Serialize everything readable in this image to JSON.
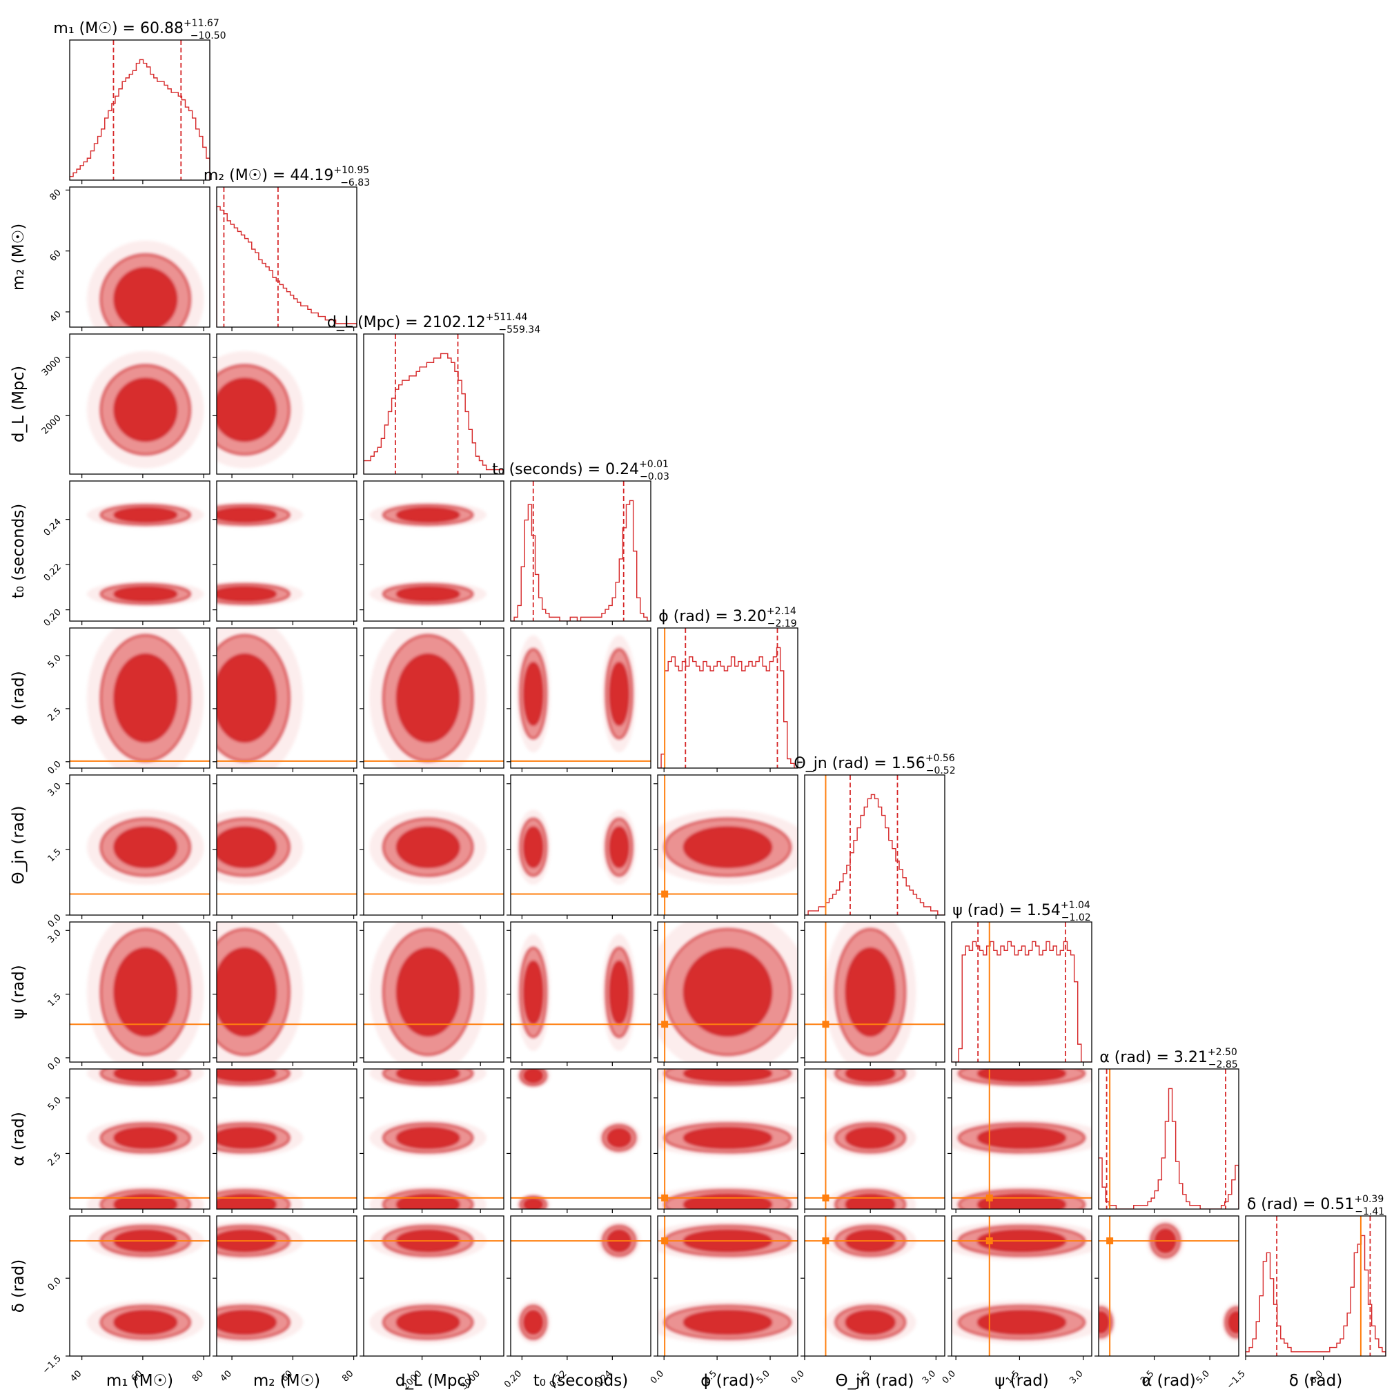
{
  "chart_data": {
    "type": "corner",
    "colors": {
      "posterior": "#d62728",
      "injection": "#ff7f0e",
      "frame": "#000000"
    },
    "parameters": [
      {
        "key": "m1",
        "label": "m₁ (M☉)",
        "title": "m₁ (M☉) = 60.88",
        "median": "60.88",
        "plus": "+11.67",
        "minus": "−10.50",
        "range": [
          36,
          82
        ],
        "ticks": [
          40,
          60,
          80
        ],
        "tick_labels": [
          "40",
          "60",
          "80"
        ],
        "injection": null
      },
      {
        "key": "m2",
        "label": "m₂ (M☉)",
        "title": "m₂ (M☉) = 44.19",
        "median": "44.19",
        "plus": "+10.95",
        "minus": "−6.83",
        "range": [
          35,
          81
        ],
        "ticks": [
          40,
          60,
          80
        ],
        "tick_labels": [
          "40",
          "60",
          "80"
        ],
        "injection": null
      },
      {
        "key": "dL",
        "label": "d_L (Mpc)",
        "title": "d_L (Mpc) = 2102.12",
        "median": "2102.12",
        "plus": "+511.44",
        "minus": "−559.34",
        "range": [
          1000,
          3400
        ],
        "ticks": [
          2000,
          3000
        ],
        "tick_labels": [
          "2000",
          "3000"
        ],
        "injection": null
      },
      {
        "key": "t0",
        "label": "t₀ (seconds)",
        "title": "t₀ (seconds) = 0.24",
        "median": "0.24",
        "plus": "+0.01",
        "minus": "−0.03",
        "range": [
          0.195,
          0.257
        ],
        "ticks": [
          0.2,
          0.22,
          0.24
        ],
        "tick_labels": [
          "0.20",
          "0.22",
          "0.24"
        ],
        "injection": null
      },
      {
        "key": "phi",
        "label": "ϕ (rad)",
        "title": "ϕ (rad) = 3.20",
        "median": "3.20",
        "plus": "+2.14",
        "minus": "−2.19",
        "range": [
          -0.3,
          6.3
        ],
        "ticks": [
          0.0,
          2.5,
          5.0
        ],
        "tick_labels": [
          "0.0",
          "2.5",
          "5.0"
        ],
        "injection": 0.03
      },
      {
        "key": "theta",
        "label": "Θ_jn (rad)",
        "title": "Θ_jn (rad) = 1.56",
        "median": "1.56",
        "plus": "+0.56",
        "minus": "−0.52",
        "range": [
          0.0,
          3.2
        ],
        "ticks": [
          0.0,
          1.5,
          3.0
        ],
        "tick_labels": [
          "0.0",
          "1.5",
          "3.0"
        ],
        "injection": 0.48
      },
      {
        "key": "psi",
        "label": "ψ (rad)",
        "title": "ψ (rad) = 1.54",
        "median": "1.54",
        "plus": "+1.04",
        "minus": "−1.02",
        "range": [
          -0.1,
          3.2
        ],
        "ticks": [
          0.0,
          1.5,
          3.0
        ],
        "tick_labels": [
          "0.0",
          "1.5",
          "3.0"
        ],
        "injection": 0.79
      },
      {
        "key": "alpha",
        "label": "α (rad)",
        "title": "α (rad) = 3.21",
        "median": "3.21",
        "plus": "+2.50",
        "minus": "−2.85",
        "range": [
          0.0,
          6.3
        ],
        "ticks": [
          2.5,
          5.0
        ],
        "tick_labels": [
          "2.5",
          "5.0"
        ],
        "injection": 0.5
      },
      {
        "key": "delta",
        "label": "δ (rad)",
        "title": "δ (rad) = 0.51",
        "median": "0.51",
        "plus": "+0.39",
        "minus": "−1.41",
        "range": [
          -1.5,
          1.2
        ],
        "ticks": [
          -1.5,
          0.0
        ],
        "tick_labels": [
          "−1.5",
          "0.0"
        ],
        "injection": 0.72
      }
    ],
    "histograms": [
      {
        "param": "m1",
        "quantiles": [
          50.38,
          72.55
        ],
        "counts": [
          1,
          2,
          3,
          4,
          5,
          6,
          8,
          10,
          12,
          14,
          17,
          19,
          21,
          23,
          25,
          27,
          28,
          29,
          30,
          32,
          33,
          32,
          31,
          29,
          28,
          27,
          27,
          26,
          25,
          24,
          24,
          23,
          22,
          20,
          19,
          17,
          14,
          12,
          9,
          6
        ]
      },
      {
        "param": "m2",
        "quantiles": [
          37.36,
          55.14
        ],
        "counts": [
          34,
          33,
          32,
          30,
          29,
          28,
          27,
          26,
          25,
          24,
          22,
          21,
          19,
          18,
          17,
          16,
          14,
          13,
          12,
          11,
          10,
          9,
          8,
          7,
          6,
          6,
          5,
          4,
          4,
          3,
          3,
          2,
          2,
          2,
          1,
          1,
          1,
          1,
          1,
          1
        ]
      },
      {
        "param": "dL",
        "quantiles": [
          1542.78,
          2613.56
        ],
        "counts": [
          3,
          3,
          4,
          5,
          6,
          8,
          11,
          14,
          17,
          19,
          20,
          21,
          21,
          22,
          22,
          23,
          24,
          24,
          25,
          25,
          26,
          26,
          27,
          27,
          26,
          25,
          23,
          21,
          18,
          14,
          10,
          7,
          4,
          3,
          2,
          1,
          1,
          1,
          1,
          1
        ]
      },
      {
        "param": "t0",
        "quantiles": [
          0.205,
          0.245
        ],
        "counts": [
          0,
          1,
          4,
          14,
          26,
          30,
          22,
          12,
          6,
          3,
          2,
          1,
          1,
          1,
          0,
          0,
          0,
          1,
          1,
          0,
          1,
          1,
          1,
          1,
          1,
          1,
          2,
          3,
          4,
          6,
          10,
          16,
          24,
          30,
          31,
          18,
          6,
          2,
          1,
          0
        ]
      },
      {
        "param": "phi",
        "quantiles": [
          1.01,
          5.34
        ],
        "counts": [
          0,
          3,
          21,
          23,
          24,
          22,
          21,
          23,
          22,
          24,
          23,
          22,
          21,
          23,
          22,
          21,
          22,
          23,
          22,
          21,
          22,
          24,
          22,
          23,
          21,
          22,
          23,
          22,
          23,
          24,
          22,
          21,
          23,
          24,
          26,
          21,
          10,
          2,
          1,
          0
        ]
      },
      {
        "param": "theta",
        "quantiles": [
          1.04,
          2.12
        ],
        "counts": [
          0,
          1,
          1,
          1,
          2,
          2,
          3,
          4,
          5,
          6,
          8,
          10,
          12,
          15,
          18,
          21,
          24,
          26,
          28,
          29,
          28,
          26,
          24,
          21,
          18,
          16,
          13,
          11,
          9,
          7,
          6,
          5,
          4,
          3,
          2,
          2,
          1,
          1,
          0,
          0
        ]
      },
      {
        "param": "psi",
        "quantiles": [
          0.52,
          2.58
        ],
        "counts": [
          0,
          0,
          3,
          24,
          26,
          25,
          27,
          26,
          25,
          24,
          26,
          27,
          25,
          24,
          26,
          25,
          27,
          26,
          24,
          25,
          26,
          24,
          25,
          27,
          26,
          24,
          25,
          27,
          25,
          26,
          24,
          25,
          27,
          25,
          24,
          18,
          4,
          0,
          0,
          0
        ]
      },
      {
        "param": "alpha",
        "quantiles": [
          0.36,
          5.71
        ],
        "counts": [
          14,
          6,
          2,
          1,
          1,
          0,
          0,
          0,
          0,
          0,
          1,
          1,
          1,
          1,
          2,
          3,
          5,
          8,
          14,
          24,
          33,
          24,
          13,
          7,
          4,
          2,
          1,
          1,
          1,
          0,
          0,
          0,
          0,
          0,
          0,
          1,
          2,
          4,
          8,
          12
        ]
      },
      {
        "param": "delta",
        "quantiles": [
          -0.9,
          0.9
        ],
        "counts": [
          1,
          2,
          4,
          8,
          14,
          22,
          24,
          18,
          12,
          7,
          4,
          3,
          2,
          1,
          1,
          1,
          1,
          1,
          1,
          1,
          1,
          1,
          1,
          1,
          2,
          2,
          3,
          4,
          7,
          10,
          16,
          24,
          26,
          28,
          20,
          12,
          7,
          4,
          2,
          1
        ]
      }
    ]
  }
}
